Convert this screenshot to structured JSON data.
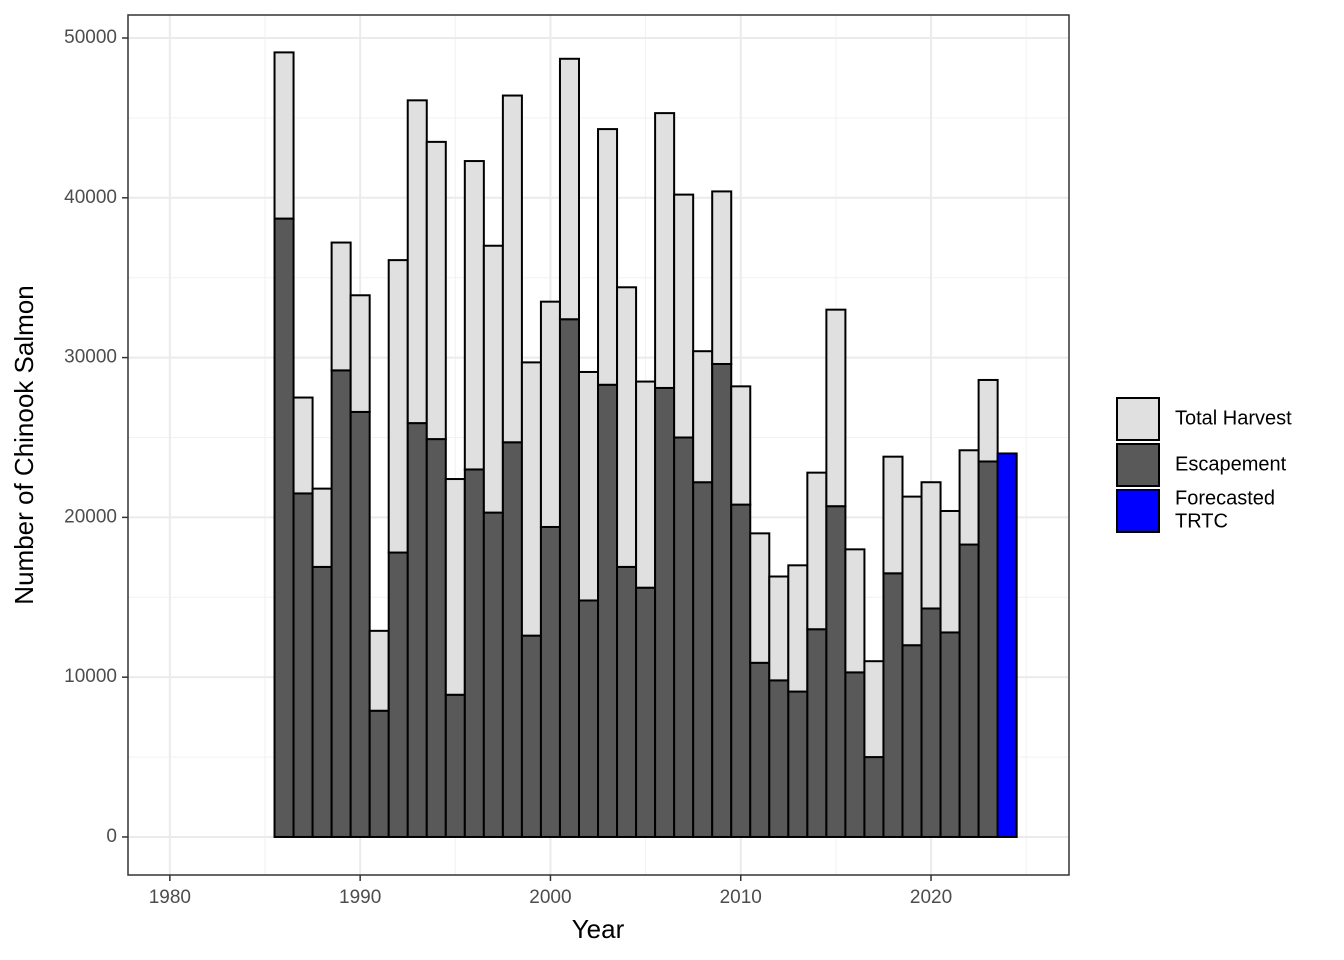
{
  "chart_data": {
    "type": "bar",
    "stacked": true,
    "xlabel": "Year",
    "ylabel": "Number of Chinook Salmon",
    "x": [
      1986,
      1987,
      1988,
      1989,
      1990,
      1991,
      1992,
      1993,
      1994,
      1995,
      1996,
      1997,
      1998,
      1999,
      2000,
      2001,
      2002,
      2003,
      2004,
      2005,
      2006,
      2007,
      2008,
      2009,
      2010,
      2011,
      2012,
      2013,
      2014,
      2015,
      2016,
      2017,
      2018,
      2019,
      2020,
      2021,
      2022,
      2023,
      2024
    ],
    "series": [
      {
        "name": "Escapement",
        "color": "#595959",
        "values": [
          38700,
          21500,
          16900,
          29200,
          26600,
          7900,
          17800,
          25900,
          24900,
          8900,
          23000,
          20300,
          24700,
          12600,
          19400,
          32400,
          14800,
          28300,
          16900,
          15600,
          28100,
          25000,
          22200,
          29600,
          20800,
          10900,
          9800,
          9100,
          13000,
          20700,
          10300,
          5000,
          16500,
          12000,
          14300,
          12800,
          18300,
          23500,
          null
        ]
      },
      {
        "name": "Total Harvest",
        "color": "#e0e0e0",
        "values": [
          10400,
          6000,
          4900,
          8000,
          7300,
          5000,
          18300,
          20200,
          18600,
          13500,
          19300,
          16700,
          21700,
          17100,
          14100,
          16300,
          14300,
          16000,
          17500,
          12900,
          17200,
          15200,
          8200,
          10800,
          7400,
          8100,
          6500,
          7900,
          9800,
          12300,
          7700,
          6000,
          7300,
          9300,
          7900,
          7600,
          5900,
          5100,
          null
        ]
      },
      {
        "name": "Forecasted TRTC",
        "color": "#0000ff",
        "values": [
          null,
          null,
          null,
          null,
          null,
          null,
          null,
          null,
          null,
          null,
          null,
          null,
          null,
          null,
          null,
          null,
          null,
          null,
          null,
          null,
          null,
          null,
          null,
          null,
          null,
          null,
          null,
          null,
          null,
          null,
          null,
          null,
          null,
          null,
          null,
          null,
          null,
          null,
          24000
        ]
      }
    ],
    "legend_order": [
      "Total Harvest",
      "Escapement",
      "Forecasted TRTC"
    ],
    "legend_position": "right",
    "xlim": [
      1977.8,
      2027.25
    ],
    "xticks": [
      1980,
      1990,
      2000,
      2010,
      2020
    ],
    "ylim": [
      -2380,
      51440
    ],
    "yticks": [
      0,
      10000,
      20000,
      30000,
      40000,
      50000
    ],
    "grid": true
  }
}
